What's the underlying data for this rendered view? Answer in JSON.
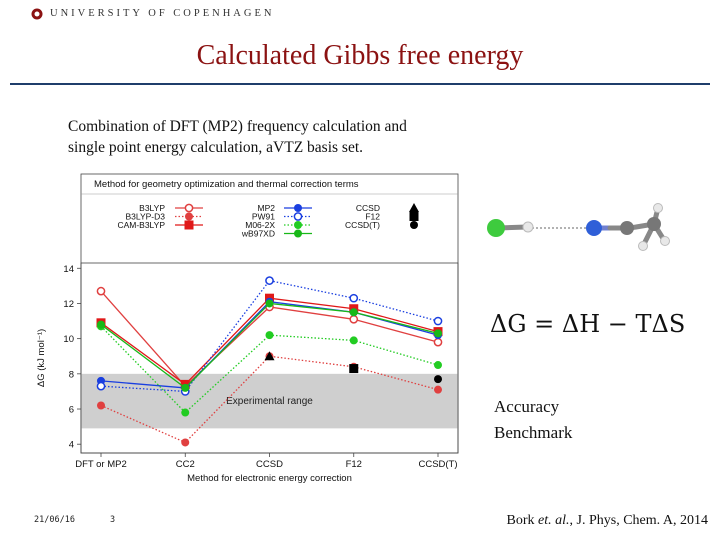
{
  "header": {
    "university": "UNIVERSITY OF COPENHAGEN"
  },
  "slide": {
    "title": "Calculated Gibbs free energy",
    "intro_line1": "Combination of DFT (MP2) frequency calculation and",
    "intro_line2": "single point energy calculation, aVTZ basis set.",
    "equation": "ΔG = ΔH − TΔS",
    "accuracy_line1": "Accuracy",
    "accuracy_line2": "Benchmark"
  },
  "footer": {
    "date": "21/06/16",
    "page_number": "3",
    "citation_author": "Bork ",
    "citation_etal": "et. al.",
    "citation_rest": ", J. Phys, Chem. A, 2014"
  },
  "colors": {
    "title": "#8b1212",
    "rule": "#1f3d6b"
  },
  "chart_data": {
    "type": "line",
    "legend_title": "Method for geometry optimization and thermal correction terms",
    "xlabel": "Method for electronic energy correction",
    "ylabel": "ΔG (kJ mol⁻¹)",
    "categories": [
      "DFT or MP2",
      "CC2",
      "CCSD",
      "F12",
      "CCSD(T)"
    ],
    "ylim": [
      3.5,
      14.3
    ],
    "yticks": [
      4,
      6,
      8,
      10,
      12,
      14
    ],
    "experimental_range": {
      "label": "Experimental range",
      "y": [
        4.9,
        8.0
      ]
    },
    "series": [
      {
        "name": "B3LYP",
        "color": "#e04040",
        "marker": "circle-open",
        "dash": "solid",
        "values": [
          12.7,
          7.3,
          11.8,
          11.1,
          9.8
        ]
      },
      {
        "name": "B3LYP-D3",
        "color": "#e04040",
        "marker": "circle",
        "dash": "dotted",
        "values": [
          6.2,
          4.1,
          9.0,
          8.4,
          7.1
        ]
      },
      {
        "name": "CAM-B3LYP",
        "color": "#e01818",
        "marker": "square",
        "dash": "solid",
        "values": [
          10.9,
          7.4,
          12.3,
          11.7,
          10.4
        ]
      },
      {
        "name": "MP2",
        "color": "#1a3fe0",
        "marker": "circle",
        "dash": "solid",
        "values": [
          7.6,
          7.2,
          12.1,
          11.5,
          10.2
        ]
      },
      {
        "name": "PW91",
        "color": "#1a3fe0",
        "marker": "circle-open",
        "dash": "dotted",
        "values": [
          7.3,
          7.0,
          13.3,
          12.3,
          11.0
        ]
      },
      {
        "name": "M06-2X",
        "color": "#22cc22",
        "marker": "circle",
        "dash": "dotted",
        "values": [
          10.7,
          5.8,
          10.2,
          9.9,
          8.5
        ]
      },
      {
        "name": "wB97XD",
        "color": "#18b818",
        "marker": "circle",
        "dash": "solid",
        "values": [
          10.8,
          7.2,
          12.0,
          11.5,
          10.3
        ]
      }
    ],
    "reference_points": [
      {
        "name": "CCSD",
        "marker": "triangle",
        "color": "#000000",
        "category": "CCSD",
        "value": 9.0
      },
      {
        "name": "F12",
        "marker": "square",
        "color": "#000000",
        "category": "F12",
        "value": 8.3
      },
      {
        "name": "CCSD(T)",
        "marker": "circle",
        "color": "#000000",
        "category": "CCSD(T)",
        "value": 7.7
      }
    ]
  }
}
